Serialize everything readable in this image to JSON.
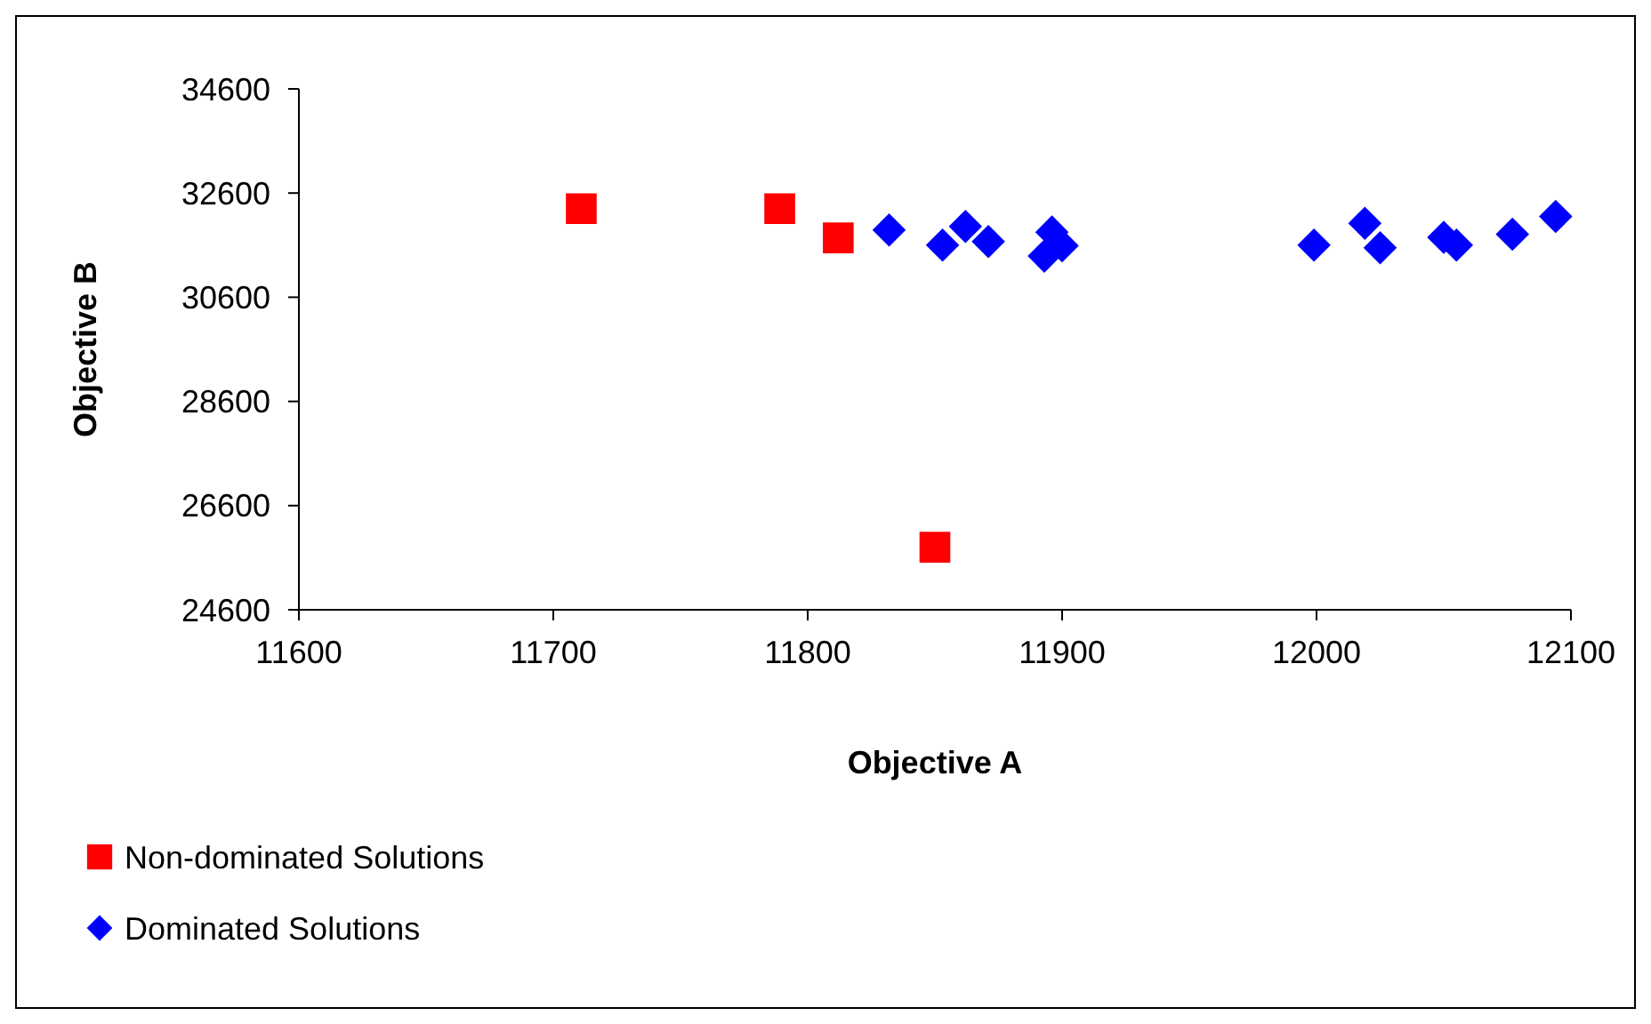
{
  "chart_data": {
    "type": "scatter",
    "xlabel": "Objective A",
    "ylabel": "Objective B",
    "xlim": [
      11600,
      12100
    ],
    "xticks": [
      11600,
      11700,
      11800,
      11900,
      12000,
      12100
    ],
    "ylim": [
      24600,
      34600
    ],
    "yticks": [
      24600,
      26600,
      28600,
      30600,
      32600,
      34600
    ],
    "grid": false,
    "legend": "bottom",
    "series": [
      {
        "name": "Non-dominated Solutions",
        "color": "#ff0000",
        "marker": "square",
        "x": [
          11711,
          11789,
          11812,
          11850
        ],
        "values": [
          32300,
          32300,
          31740,
          25800
        ]
      },
      {
        "name": "Dominated Solutions",
        "color": "#0000ff",
        "marker": "diamond",
        "x": [
          11832,
          11853,
          11862,
          11871,
          11900,
          11893,
          11999,
          12019,
          12025,
          12050,
          12055,
          12077,
          12094,
          11896
        ],
        "values": [
          31890,
          31600,
          31960,
          31670,
          31590,
          31390,
          31600,
          32020,
          31550,
          31750,
          31600,
          31810,
          32150,
          31850
        ]
      }
    ]
  }
}
